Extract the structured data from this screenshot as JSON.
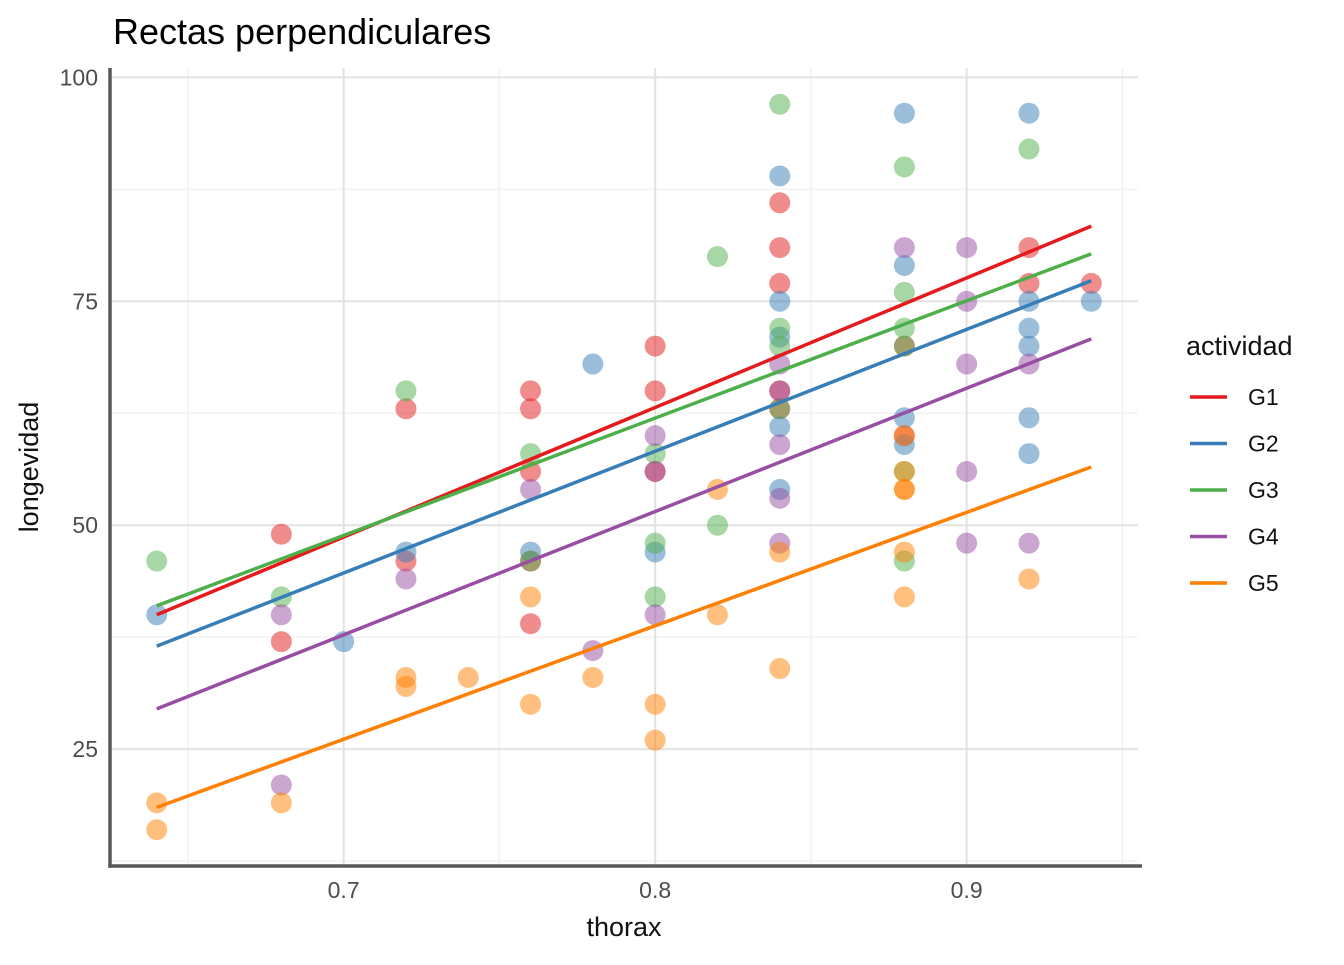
{
  "title": "Rectas perpendiculares",
  "legend": {
    "title": "actividad",
    "entries": [
      {
        "label": "G1",
        "color": "#E41A1C"
      },
      {
        "label": "G2",
        "color": "#377EB8"
      },
      {
        "label": "G3",
        "color": "#4DAF4A"
      },
      {
        "label": "G4",
        "color": "#984EA3"
      },
      {
        "label": "G5",
        "color": "#FF7F00"
      }
    ],
    "position": "right"
  },
  "style": {
    "point_radius": 10.5,
    "point_opacity": 0.5,
    "line_width": 3.5,
    "major_grid_color": "#E2E2E2",
    "minor_grid_color": "#F2F2F2",
    "axis_line_color": "#58585A",
    "tick_label_color": "#4D4D4D"
  },
  "chart_data": {
    "type": "scatter",
    "title": "Rectas perpendiculares",
    "xlabel": "thorax",
    "ylabel": "longevidad",
    "xlim": [
      0.625,
      0.955
    ],
    "ylim": [
      11.95,
      101.05
    ],
    "x_ticks": [
      0.7,
      0.8,
      0.9
    ],
    "x_tick_labels": [
      "0.7",
      "0.8",
      "0.9"
    ],
    "x_minor_ticks": [
      0.65,
      0.75,
      0.85,
      0.95
    ],
    "y_ticks": [
      25,
      50,
      75,
      100
    ],
    "y_tick_labels": [
      "25",
      "50",
      "75",
      "100"
    ],
    "y_minor_ticks": [
      12.5,
      37.5,
      62.5,
      87.5
    ],
    "grid": true,
    "legend_position": "right",
    "series": [
      {
        "name": "G1",
        "color": "#E41A1C",
        "points": [
          [
            0.68,
            49
          ],
          [
            0.68,
            37
          ],
          [
            0.72,
            63
          ],
          [
            0.72,
            46
          ],
          [
            0.76,
            65
          ],
          [
            0.76,
            63
          ],
          [
            0.76,
            56
          ],
          [
            0.76,
            46
          ],
          [
            0.76,
            39
          ],
          [
            0.8,
            70
          ],
          [
            0.8,
            65
          ],
          [
            0.8,
            56
          ],
          [
            0.84,
            86
          ],
          [
            0.84,
            81
          ],
          [
            0.84,
            77
          ],
          [
            0.84,
            65
          ],
          [
            0.84,
            63
          ],
          [
            0.88,
            70
          ],
          [
            0.88,
            60
          ],
          [
            0.92,
            81
          ],
          [
            0.92,
            77
          ],
          [
            0.94,
            77
          ]
        ],
        "regression_line": {
          "x": [
            0.64,
            0.94
          ],
          "y": [
            40.0,
            83.4
          ]
        }
      },
      {
        "name": "G2",
        "color": "#377EB8",
        "points": [
          [
            0.64,
            40
          ],
          [
            0.7,
            37
          ],
          [
            0.72,
            47
          ],
          [
            0.76,
            47
          ],
          [
            0.78,
            68
          ],
          [
            0.8,
            47
          ],
          [
            0.84,
            89
          ],
          [
            0.84,
            75
          ],
          [
            0.84,
            71
          ],
          [
            0.84,
            61
          ],
          [
            0.84,
            54
          ],
          [
            0.88,
            96
          ],
          [
            0.88,
            79
          ],
          [
            0.88,
            62
          ],
          [
            0.88,
            59
          ],
          [
            0.92,
            96
          ],
          [
            0.92,
            75
          ],
          [
            0.92,
            72
          ],
          [
            0.92,
            70
          ],
          [
            0.92,
            62
          ],
          [
            0.92,
            58
          ],
          [
            0.94,
            75
          ]
        ],
        "regression_line": {
          "x": [
            0.64,
            0.94
          ],
          "y": [
            36.5,
            77.3
          ]
        }
      },
      {
        "name": "G3",
        "color": "#4DAF4A",
        "points": [
          [
            0.64,
            46
          ],
          [
            0.68,
            42
          ],
          [
            0.72,
            65
          ],
          [
            0.76,
            58
          ],
          [
            0.76,
            46
          ],
          [
            0.8,
            58
          ],
          [
            0.8,
            48
          ],
          [
            0.8,
            42
          ],
          [
            0.82,
            80
          ],
          [
            0.82,
            50
          ],
          [
            0.84,
            97
          ],
          [
            0.84,
            72
          ],
          [
            0.84,
            70
          ],
          [
            0.84,
            63
          ],
          [
            0.88,
            90
          ],
          [
            0.88,
            76
          ],
          [
            0.88,
            72
          ],
          [
            0.88,
            70
          ],
          [
            0.88,
            56
          ],
          [
            0.88,
            46
          ],
          [
            0.92,
            92
          ]
        ],
        "regression_line": {
          "x": [
            0.64,
            0.94
          ],
          "y": [
            41.0,
            80.3
          ]
        }
      },
      {
        "name": "G4",
        "color": "#984EA3",
        "points": [
          [
            0.68,
            40
          ],
          [
            0.68,
            21
          ],
          [
            0.72,
            44
          ],
          [
            0.76,
            54
          ],
          [
            0.78,
            36
          ],
          [
            0.8,
            60
          ],
          [
            0.8,
            56
          ],
          [
            0.8,
            40
          ],
          [
            0.84,
            68
          ],
          [
            0.84,
            65
          ],
          [
            0.84,
            59
          ],
          [
            0.84,
            53
          ],
          [
            0.84,
            48
          ],
          [
            0.88,
            81
          ],
          [
            0.9,
            81
          ],
          [
            0.9,
            75
          ],
          [
            0.9,
            68
          ],
          [
            0.9,
            56
          ],
          [
            0.9,
            48
          ],
          [
            0.92,
            68
          ],
          [
            0.92,
            48
          ]
        ],
        "regression_line": {
          "x": [
            0.64,
            0.94
          ],
          "y": [
            29.5,
            70.8
          ]
        }
      },
      {
        "name": "G5",
        "color": "#FF7F00",
        "points": [
          [
            0.64,
            19
          ],
          [
            0.64,
            16
          ],
          [
            0.68,
            19
          ],
          [
            0.72,
            33
          ],
          [
            0.72,
            32
          ],
          [
            0.74,
            33
          ],
          [
            0.76,
            42
          ],
          [
            0.76,
            30
          ],
          [
            0.78,
            33
          ],
          [
            0.8,
            30
          ],
          [
            0.8,
            26
          ],
          [
            0.82,
            54
          ],
          [
            0.82,
            40
          ],
          [
            0.84,
            47
          ],
          [
            0.84,
            34
          ],
          [
            0.88,
            60
          ],
          [
            0.88,
            56
          ],
          [
            0.88,
            54
          ],
          [
            0.88,
            54
          ],
          [
            0.88,
            47
          ],
          [
            0.88,
            42
          ],
          [
            0.92,
            44
          ]
        ],
        "regression_line": {
          "x": [
            0.64,
            0.94
          ],
          "y": [
            18.5,
            56.5
          ]
        }
      }
    ]
  }
}
